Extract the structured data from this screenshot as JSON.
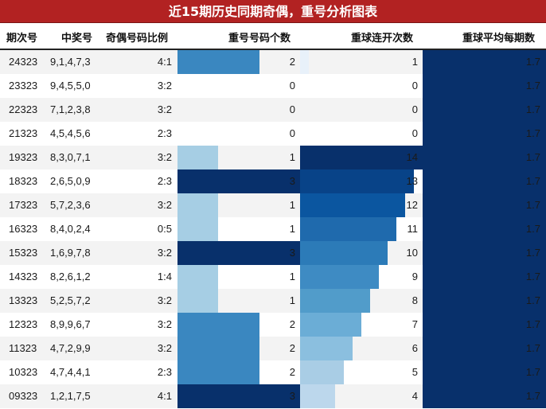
{
  "title": "近15期历史同期奇偶，重号分析图表",
  "headers": {
    "period": "期次号",
    "numbers": "中奖号",
    "odd_even": "奇偶号码比例",
    "repeat_count": "重号号码个数",
    "consecutive": "重球连开次数",
    "avg_per_period": "重球平均每期数"
  },
  "colors": {
    "title_bg": "#b22222",
    "row_odd": "#f3f3f3",
    "row_even": "#ffffff",
    "dark_navy": "#08306b"
  },
  "rows": [
    {
      "period": "24323",
      "numbers": "9,1,4,7,3",
      "ratio": "4:1",
      "repeat": "2",
      "consecutive": "1",
      "avg": "1.7"
    },
    {
      "period": "23323",
      "numbers": "9,4,5,5,0",
      "ratio": "3:2",
      "repeat": "0",
      "consecutive": "0",
      "avg": "1.7"
    },
    {
      "period": "22323",
      "numbers": "7,1,2,3,8",
      "ratio": "3:2",
      "repeat": "0",
      "consecutive": "0",
      "avg": "1.7"
    },
    {
      "period": "21323",
      "numbers": "4,5,4,5,6",
      "ratio": "2:3",
      "repeat": "0",
      "consecutive": "0",
      "avg": "1.7"
    },
    {
      "period": "19323",
      "numbers": "8,3,0,7,1",
      "ratio": "3:2",
      "repeat": "1",
      "consecutive": "14",
      "avg": "1.7"
    },
    {
      "period": "18323",
      "numbers": "2,6,5,0,9",
      "ratio": "2:3",
      "repeat": "3",
      "consecutive": "13",
      "avg": "1.7"
    },
    {
      "period": "17323",
      "numbers": "5,7,2,3,6",
      "ratio": "3:2",
      "repeat": "1",
      "consecutive": "12",
      "avg": "1.7"
    },
    {
      "period": "16323",
      "numbers": "8,4,0,2,4",
      "ratio": "0:5",
      "repeat": "1",
      "consecutive": "11",
      "avg": "1.7"
    },
    {
      "period": "15323",
      "numbers": "1,6,9,7,8",
      "ratio": "3:2",
      "repeat": "3",
      "consecutive": "10",
      "avg": "1.7"
    },
    {
      "period": "14323",
      "numbers": "8,2,6,1,2",
      "ratio": "1:4",
      "repeat": "1",
      "consecutive": "9",
      "avg": "1.7"
    },
    {
      "period": "13323",
      "numbers": "5,2,5,7,2",
      "ratio": "3:2",
      "repeat": "1",
      "consecutive": "8",
      "avg": "1.7"
    },
    {
      "period": "12323",
      "numbers": "8,9,9,6,7",
      "ratio": "3:2",
      "repeat": "2",
      "consecutive": "7",
      "avg": "1.7"
    },
    {
      "period": "11323",
      "numbers": "4,7,2,9,9",
      "ratio": "3:2",
      "repeat": "2",
      "consecutive": "6",
      "avg": "1.7"
    },
    {
      "period": "10323",
      "numbers": "4,7,4,4,1",
      "ratio": "2:3",
      "repeat": "2",
      "consecutive": "5",
      "avg": "1.7"
    },
    {
      "period": "09323",
      "numbers": "1,2,1,7,5",
      "ratio": "4:1",
      "repeat": "3",
      "consecutive": "4",
      "avg": "1.7"
    }
  ],
  "chart_data": {
    "type": "table",
    "title": "近15期历史同期奇偶，重号分析图表",
    "columns": [
      "期次号",
      "中奖号",
      "奇偶号码比例",
      "重号号码个数",
      "重球连开次数",
      "重球平均每期数"
    ],
    "categories": [
      "24323",
      "23323",
      "22323",
      "21323",
      "19323",
      "18323",
      "17323",
      "16323",
      "15323",
      "14323",
      "13323",
      "12323",
      "11323",
      "10323",
      "09323"
    ],
    "series": [
      {
        "name": "重号号码个数",
        "values": [
          2,
          0,
          0,
          0,
          1,
          3,
          1,
          1,
          3,
          1,
          1,
          2,
          2,
          2,
          3
        ],
        "max": 3
      },
      {
        "name": "重球连开次数",
        "values": [
          1,
          0,
          0,
          0,
          14,
          13,
          12,
          11,
          10,
          9,
          8,
          7,
          6,
          5,
          4
        ],
        "max": 14
      },
      {
        "name": "重球平均每期数",
        "values": [
          1.7,
          1.7,
          1.7,
          1.7,
          1.7,
          1.7,
          1.7,
          1.7,
          1.7,
          1.7,
          1.7,
          1.7,
          1.7,
          1.7,
          1.7
        ]
      }
    ],
    "winning_numbers": [
      "9,1,4,7,3",
      "9,4,5,5,0",
      "7,1,2,3,8",
      "4,5,4,5,6",
      "8,3,0,7,1",
      "2,6,5,0,9",
      "5,7,2,3,6",
      "8,4,0,2,4",
      "1,6,9,7,8",
      "8,2,6,1,2",
      "5,2,5,7,2",
      "8,9,9,6,7",
      "4,7,2,9,9",
      "4,7,4,4,1",
      "1,2,1,7,5"
    ],
    "odd_even_ratio": [
      "4:1",
      "3:2",
      "3:2",
      "2:3",
      "3:2",
      "2:3",
      "3:2",
      "0:5",
      "3:2",
      "1:4",
      "3:2",
      "3:2",
      "3:2",
      "2:3",
      "4:1"
    ]
  }
}
